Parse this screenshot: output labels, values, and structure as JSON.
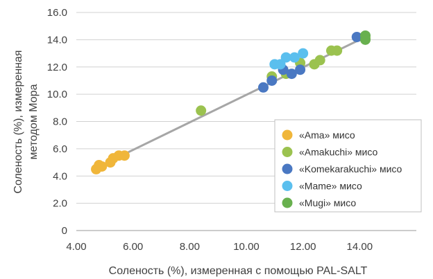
{
  "chart_data": {
    "type": "scatter",
    "title": "",
    "xlabel": "Соленость (%), измеренная с помощью PAL-SALT",
    "ylabel_lines": [
      "Соленость (%), измеренная",
      "методом Мора"
    ],
    "xlim": [
      4,
      16
    ],
    "ylim": [
      0,
      16
    ],
    "x_ticks": [
      {
        "value": 4,
        "label": "4.00"
      },
      {
        "value": 6,
        "label": "6.00"
      },
      {
        "value": 8,
        "label": "8.00"
      },
      {
        "value": 10,
        "label": "10.00"
      },
      {
        "value": 12,
        "label": "12.00"
      },
      {
        "value": 14,
        "label": "14.00"
      }
    ],
    "y_ticks": [
      {
        "value": 0,
        "label": "0"
      },
      {
        "value": 2,
        "label": "2.0"
      },
      {
        "value": 4,
        "label": "4.0"
      },
      {
        "value": 6,
        "label": "6.0"
      },
      {
        "value": 8,
        "label": "8.0"
      },
      {
        "value": 10,
        "label": "10.0"
      },
      {
        "value": 12,
        "label": "12.0"
      },
      {
        "value": 14,
        "label": "14.0"
      },
      {
        "value": 16,
        "label": "16.0"
      }
    ],
    "grid": "horizontal",
    "legend_position": "right",
    "trendline": {
      "from": [
        4.7,
        4.6
      ],
      "to": [
        14.2,
        14.2
      ],
      "color": "#a6a6a6"
    },
    "series": [
      {
        "name": "«Ama» мисо",
        "color": "#f0b63a",
        "points": [
          [
            4.7,
            4.5
          ],
          [
            4.8,
            4.8
          ],
          [
            4.9,
            4.7
          ],
          [
            5.2,
            5.0
          ],
          [
            5.3,
            5.3
          ],
          [
            5.5,
            5.5
          ],
          [
            5.7,
            5.5
          ]
        ]
      },
      {
        "name": "«Amakuchi» мисо",
        "color": "#9bc24f",
        "points": [
          [
            8.4,
            8.8
          ],
          [
            10.9,
            11.3
          ],
          [
            11.4,
            11.5
          ],
          [
            11.9,
            12.3
          ],
          [
            12.4,
            12.2
          ],
          [
            12.6,
            12.5
          ],
          [
            13.0,
            13.2
          ],
          [
            13.2,
            13.2
          ],
          [
            14.2,
            14.1
          ]
        ]
      },
      {
        "name": "«Komekarakuchi» мисо",
        "color": "#4a78c2",
        "points": [
          [
            10.6,
            10.5
          ],
          [
            10.9,
            11.0
          ],
          [
            11.3,
            11.8
          ],
          [
            11.6,
            11.5
          ],
          [
            11.9,
            11.8
          ],
          [
            13.9,
            14.2
          ]
        ]
      },
      {
        "name": "«Mame» мисо",
        "color": "#5bbfee",
        "points": [
          [
            11.0,
            12.2
          ],
          [
            11.2,
            12.2
          ],
          [
            11.4,
            12.7
          ],
          [
            11.7,
            12.7
          ],
          [
            12.0,
            13.0
          ]
        ]
      },
      {
        "name": "«Mugi» мисо",
        "color": "#68b04e",
        "points": [
          [
            14.2,
            14.3
          ],
          [
            14.2,
            14.0
          ]
        ]
      }
    ]
  }
}
